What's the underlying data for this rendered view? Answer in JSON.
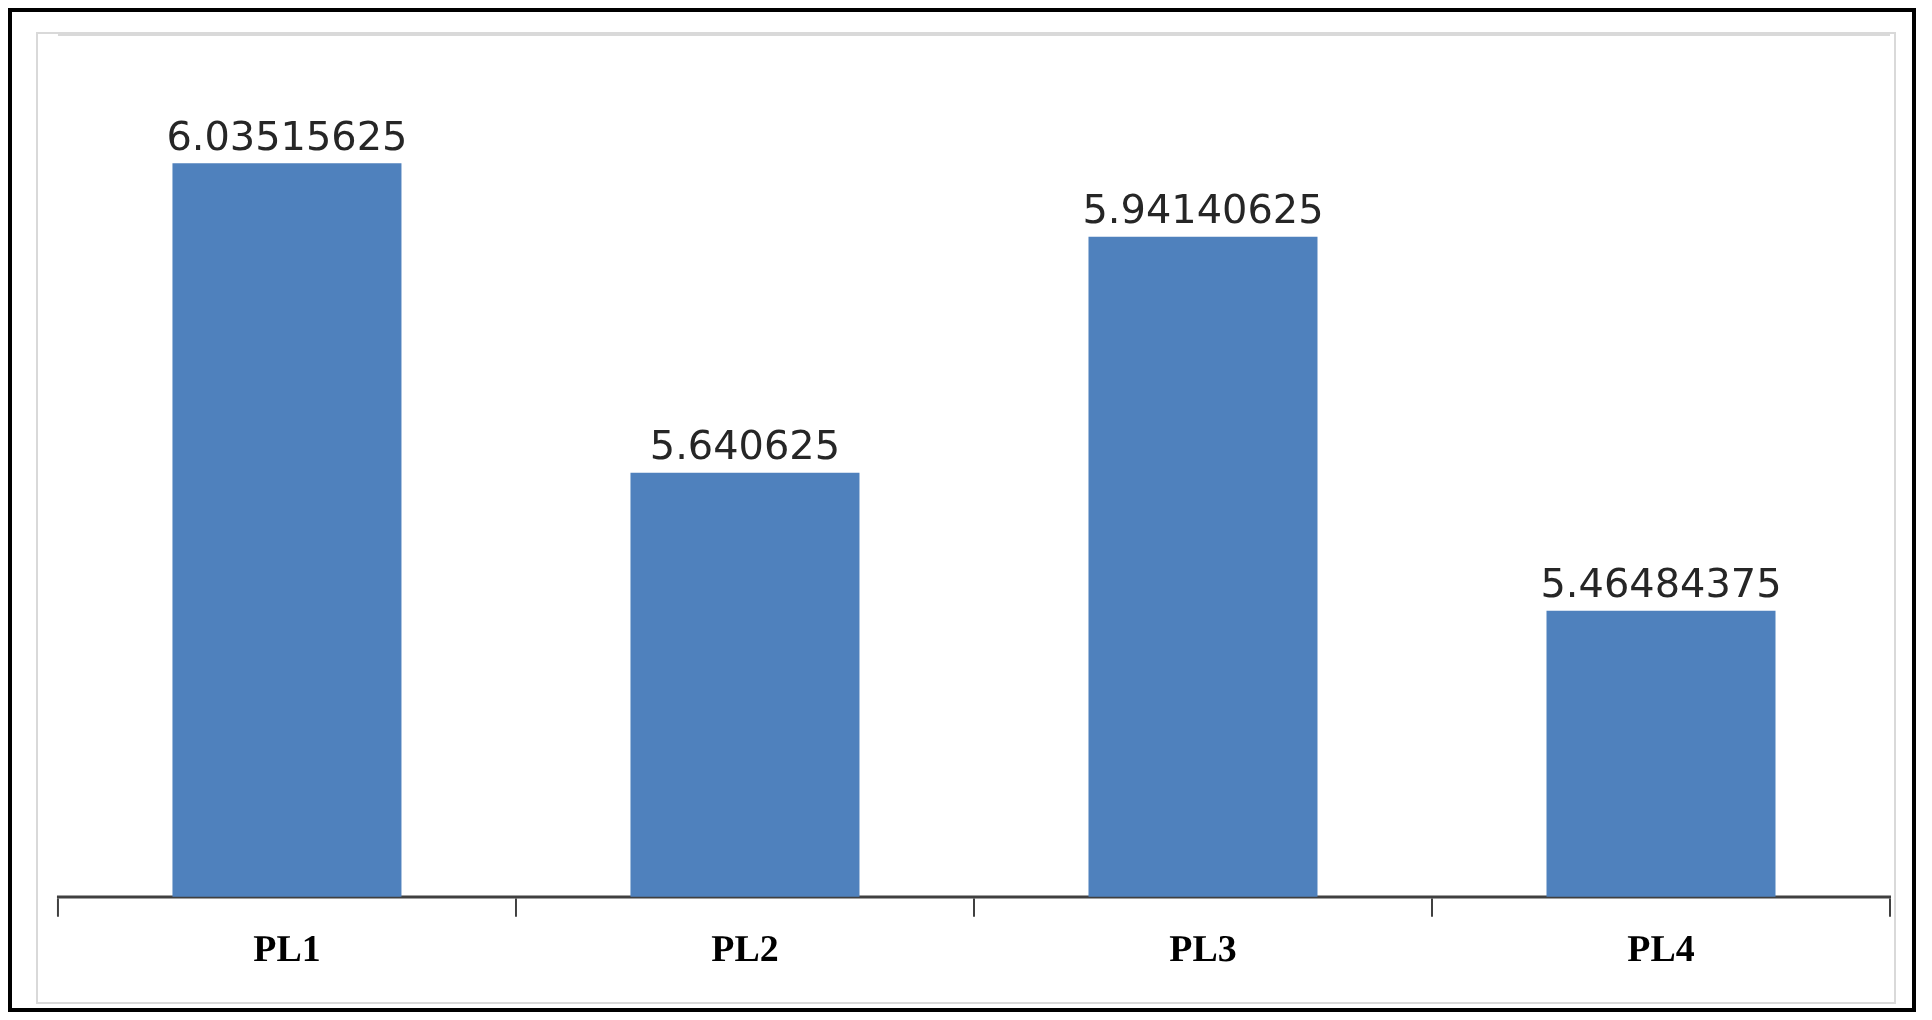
{
  "chart_data": {
    "type": "bar",
    "categories": [
      "PL1",
      "PL2",
      "PL3",
      "PL4"
    ],
    "values": [
      6.03515625,
      5.640625,
      5.94140625,
      5.46484375
    ],
    "color": "#4f81bd",
    "ylim": [
      5.1,
      6.2
    ],
    "data_labels": true,
    "grid": false,
    "legend": false
  }
}
